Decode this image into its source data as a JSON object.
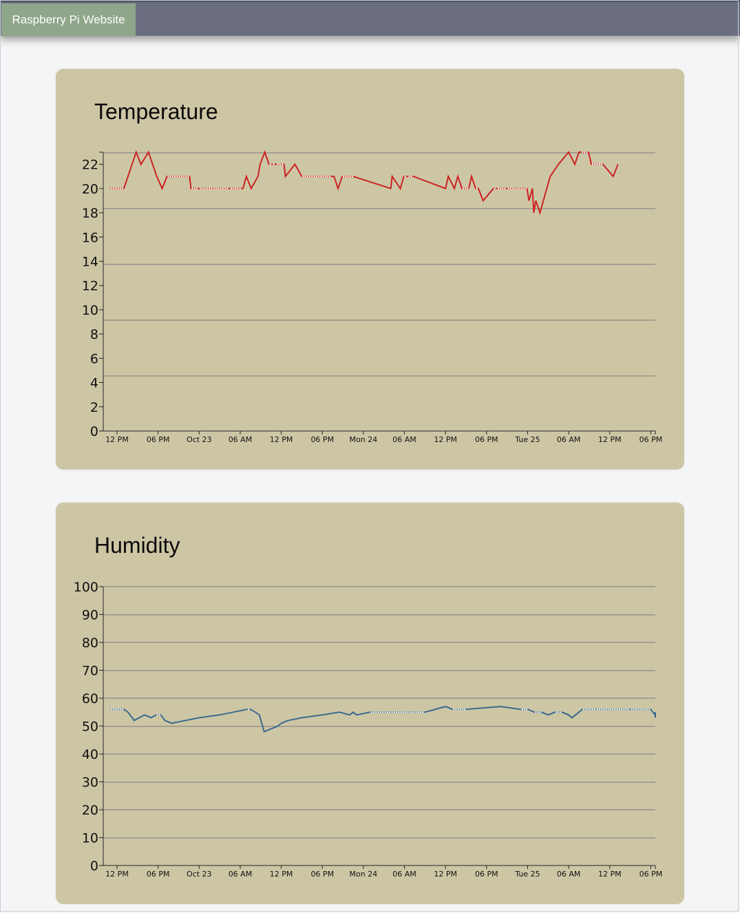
{
  "navbar": {
    "brand": "Raspberry Pi Website"
  },
  "chart_data": [
    {
      "type": "line",
      "title": "Temperature",
      "color": "#cc2222",
      "x_unit": "hours",
      "x_tick_labels": [
        "12 PM",
        "06 PM",
        "Oct 23",
        "06 AM",
        "12 PM",
        "06 PM",
        "Mon 24",
        "06 AM",
        "12 PM",
        "06 PM",
        "Tue 25",
        "06 AM",
        "12 PM",
        "06 PM"
      ],
      "y_tick_labels": [
        "0",
        "2",
        "4",
        "6",
        "8",
        "10",
        "12",
        "14",
        "16",
        "18",
        "20",
        "22"
      ],
      "ylim": [
        0,
        23
      ],
      "grid": true,
      "x": [
        -1,
        1,
        1.6,
        2.2,
        2.8,
        3.5,
        4.6,
        5.2,
        5.8,
        6.6,
        7.3,
        10.6,
        10.8,
        12,
        14,
        16.5,
        18.4,
        18.9,
        19.6,
        20.6,
        20.9,
        21.6,
        22.2,
        22.7,
        23.3,
        24,
        24.4,
        24.6,
        26,
        27,
        29.6,
        31.4,
        31.7,
        32.3,
        32.9,
        34.5,
        40,
        40.2,
        41.4,
        41.9,
        42.5,
        43.3,
        48,
        48.4,
        49.3,
        49.8,
        50.4,
        51.4,
        51.8,
        52.4,
        52.8,
        53.5,
        55,
        55.5,
        57,
        58.6,
        59.9,
        60.2,
        60.7,
        60.9,
        61.2,
        61.8,
        62.8,
        63.3,
        64.5,
        66,
        66.9,
        67.5,
        67.8,
        68.9,
        69.3,
        71,
        72.5,
        73.2
      ],
      "values": [
        20,
        20,
        21,
        22,
        23,
        22,
        23,
        22,
        21,
        20,
        21,
        21,
        20,
        20,
        20,
        20,
        20,
        21,
        20,
        21,
        22,
        23,
        22,
        22,
        22,
        22,
        22,
        21,
        22,
        21,
        21,
        21,
        21,
        20,
        21,
        21,
        20,
        21,
        20,
        21,
        21,
        21,
        20,
        21,
        20,
        21,
        20,
        20,
        21,
        20,
        20,
        19,
        20,
        20,
        20,
        20,
        20,
        19,
        20,
        18,
        19,
        18,
        20,
        21,
        22,
        23,
        22,
        23,
        23,
        23,
        22,
        22,
        21,
        22
      ]
    },
    {
      "type": "line",
      "title": "Humidity",
      "color": "#3a6a8e",
      "x_unit": "hours",
      "x_tick_labels": [
        "12 PM",
        "06 PM",
        "Oct 23",
        "06 AM",
        "12 PM",
        "06 PM",
        "Mon 24",
        "06 AM",
        "12 PM",
        "06 PM",
        "Tue 25",
        "06 AM",
        "12 PM",
        "06 PM"
      ],
      "y_tick_labels": [
        "0",
        "10",
        "20",
        "30",
        "40",
        "50",
        "60",
        "70",
        "80",
        "90",
        "100"
      ],
      "ylim": [
        0,
        100
      ],
      "grid": true,
      "x": [
        -1,
        1,
        1.6,
        2.5,
        4,
        5,
        5.7,
        6.4,
        7,
        8,
        12,
        15,
        17,
        19,
        19.5,
        20.2,
        20.8,
        21.5,
        22.5,
        23.5,
        24,
        25,
        27,
        30,
        32.5,
        34,
        34.5,
        35,
        37,
        38,
        39,
        40,
        45,
        48,
        49,
        51,
        56,
        59,
        60,
        61,
        62,
        63,
        64,
        65,
        66,
        66.5,
        67,
        68,
        70,
        75,
        78,
        78.6,
        79,
        80,
        83,
        85,
        87,
        88,
        89,
        90,
        91,
        92,
        93,
        94,
        95.5,
        97
      ],
      "values": [
        56,
        56,
        55,
        52,
        54,
        53,
        54,
        54,
        52,
        51,
        53,
        54,
        55,
        56,
        56,
        55,
        54,
        48,
        49,
        50,
        51,
        52,
        53,
        54,
        55,
        54,
        55,
        54,
        55,
        55,
        55,
        55,
        55,
        57,
        56,
        56,
        57,
        56,
        56,
        55,
        55,
        54,
        55,
        55,
        54,
        53,
        54,
        56,
        56,
        56,
        56,
        54,
        55,
        54,
        53,
        54,
        53,
        53,
        53,
        53,
        54,
        53,
        54,
        53,
        55,
        55
      ]
    }
  ]
}
